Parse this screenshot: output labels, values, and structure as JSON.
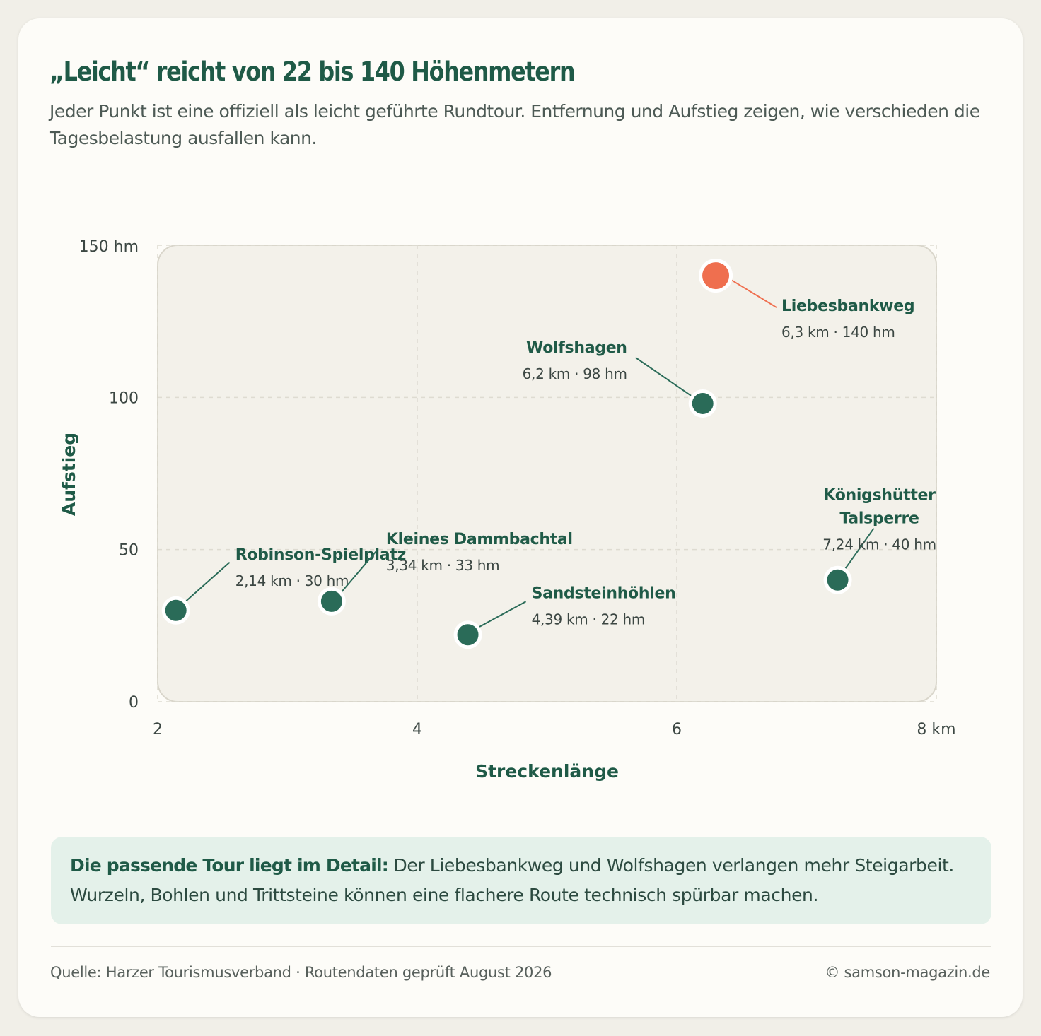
{
  "header": {
    "title": "„Leicht“ reicht von 22 bis 140 Höhenmetern",
    "subtitle": "Jeder Punkt ist eine offiziell als leicht geführte Rundtour. Entfernung und Aufstieg zeigen, wie verschieden die Tagesbelastung ausfallen kann."
  },
  "colors": {
    "primary": "#1f5a47",
    "dot": "#2a6b58",
    "highlight": "#ef6f4f",
    "plot_bg": "#f3f1ea",
    "callout_bg": "#e4f1ea"
  },
  "chart_data": {
    "type": "scatter",
    "title": "„Leicht“ reicht von 22 bis 140 Höhenmetern",
    "xlabel": "Streckenlänge",
    "ylabel": "Aufstieg",
    "xlim": [
      2,
      8
    ],
    "ylim": [
      0,
      150
    ],
    "x_ticks": [
      {
        "value": 2,
        "label": "2"
      },
      {
        "value": 4,
        "label": "4"
      },
      {
        "value": 6,
        "label": "6"
      },
      {
        "value": 8,
        "label": "8 km"
      }
    ],
    "y_ticks": [
      {
        "value": 0,
        "label": "0"
      },
      {
        "value": 50,
        "label": "50"
      },
      {
        "value": 100,
        "label": "100"
      },
      {
        "value": 150,
        "label": "150 hm"
      }
    ],
    "grid": true,
    "points": [
      {
        "name": "Robinson-Spielplatz",
        "lines": [
          "Robinson-Spielplatz"
        ],
        "x": 2.14,
        "y": 30,
        "detail": "2,14 km · 30 hm",
        "highlight": false
      },
      {
        "name": "Kleines Dammbachtal",
        "lines": [
          "Kleines Dammbachtal"
        ],
        "x": 3.34,
        "y": 33,
        "detail": "3,34 km · 33 hm",
        "highlight": false
      },
      {
        "name": "Sandsteinhöhlen",
        "lines": [
          "Sandsteinhöhlen"
        ],
        "x": 4.39,
        "y": 22,
        "detail": "4,39 km · 22 hm",
        "highlight": false
      },
      {
        "name": "Wolfshagen",
        "lines": [
          "Wolfshagen"
        ],
        "x": 6.2,
        "y": 98,
        "detail": "6,2 km · 98 hm",
        "highlight": false
      },
      {
        "name": "Liebesbankweg",
        "lines": [
          "Liebesbankweg"
        ],
        "x": 6.3,
        "y": 140,
        "detail": "6,3 km · 140 hm",
        "highlight": true
      },
      {
        "name": "Königshütter Talsperre",
        "lines": [
          "Königshütter",
          "Talsperre"
        ],
        "x": 7.24,
        "y": 40,
        "detail": "7,24 km · 40 hm",
        "highlight": false
      }
    ]
  },
  "callout": {
    "lead": "Die passende Tour liegt im Detail:",
    "text": " Der Liebesbankweg und Wolfshagen verlangen mehr Steigarbeit. Wurzeln, Bohlen und Trittsteine können eine flachere Route technisch spürbar machen."
  },
  "footer": {
    "source": "Quelle: Harzer Tourismusverband · Routendaten geprüft August 2026",
    "credit": "© samson-magazin.de"
  }
}
